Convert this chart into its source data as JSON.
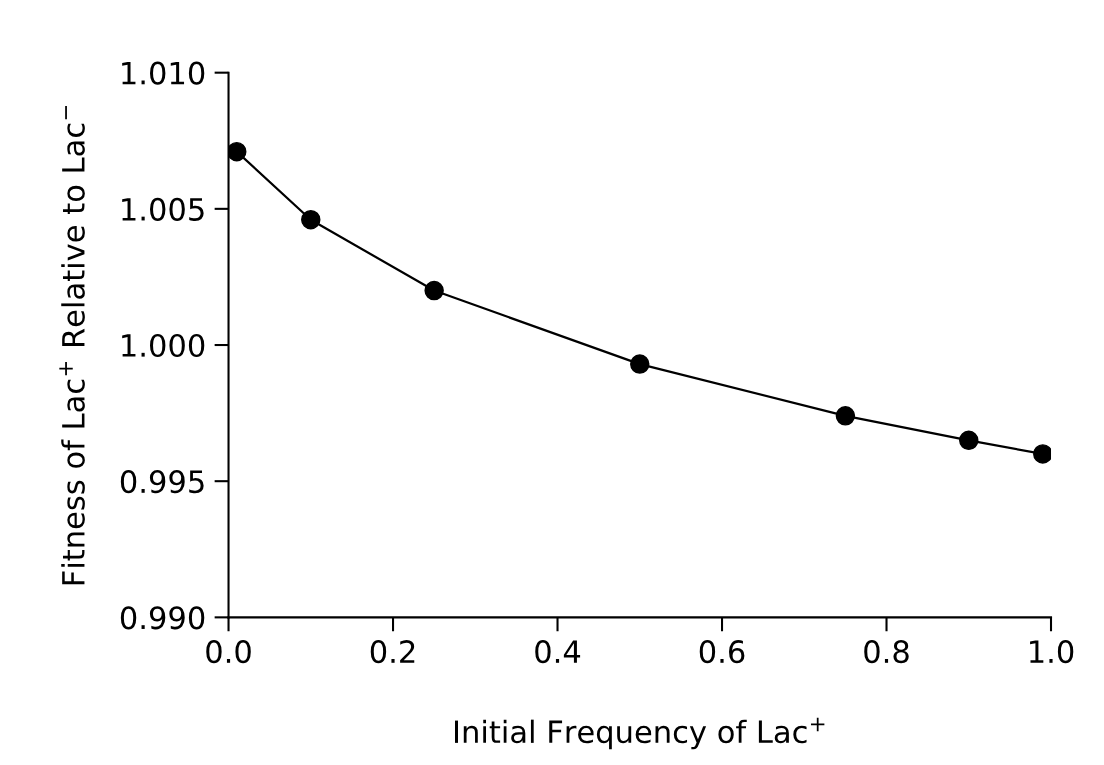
{
  "chart_data": {
    "type": "line",
    "xlabel": "Initial Frequency of Lac$^{+}$",
    "ylabel": "Fitness of Lac$^{+}$ Relative to Lac$^{−}$",
    "x": [
      0.01,
      0.1,
      0.25,
      0.5,
      0.75,
      0.9,
      0.99
    ],
    "series": [
      {
        "color": "#000000",
        "values": [
          1.0071,
          1.0046,
          1.002,
          0.9993,
          0.9974,
          0.9965,
          0.996
        ]
      }
    ],
    "marker": "circle",
    "line_style": "solid",
    "xlim": [
      0.0,
      1.0
    ],
    "ylim": [
      0.99,
      1.01
    ],
    "xticks": [
      {
        "value": 0.0,
        "label": "0.0"
      },
      {
        "value": 0.2,
        "label": "0.2"
      },
      {
        "value": 0.4,
        "label": "0.4"
      },
      {
        "value": 0.6,
        "label": "0.6"
      },
      {
        "value": 0.8,
        "label": "0.8"
      },
      {
        "value": 1.0,
        "label": "1.0"
      }
    ],
    "yticks": [
      {
        "value": 0.99,
        "label": "0.990"
      },
      {
        "value": 0.995,
        "label": "0.995"
      },
      {
        "value": 1.0,
        "label": "1.000"
      },
      {
        "value": 1.005,
        "label": "1.005"
      },
      {
        "value": 1.01,
        "label": "1.010"
      }
    ]
  }
}
